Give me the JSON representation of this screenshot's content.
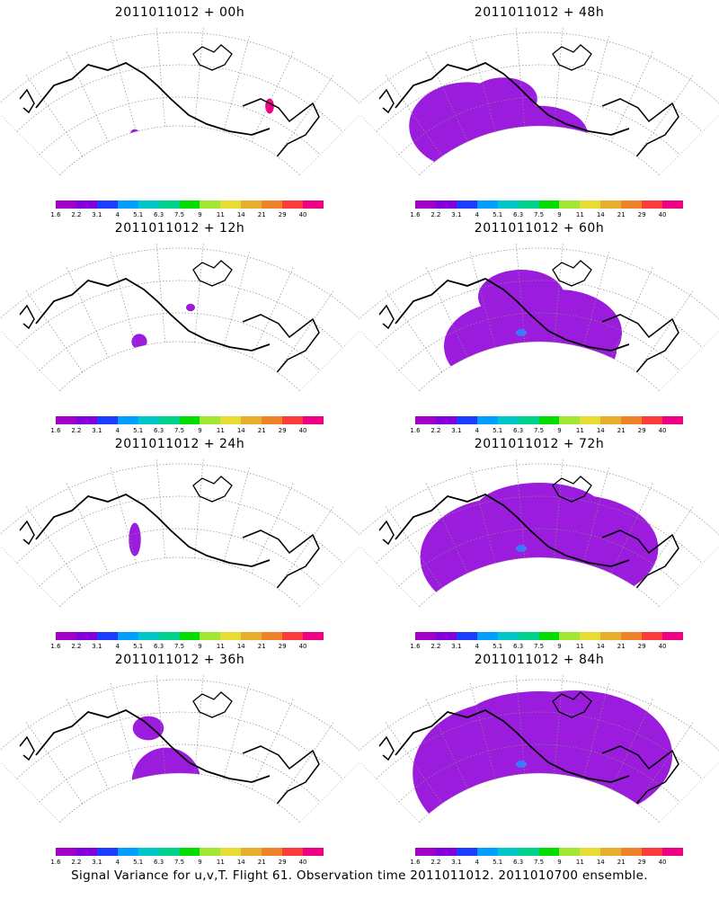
{
  "panels": [
    {
      "title": "2011011012 + 00h",
      "spread": 0
    },
    {
      "title": "2011011012 + 48h",
      "spread": 4
    },
    {
      "title": "2011011012 + 12h",
      "spread": 1
    },
    {
      "title": "2011011012 + 60h",
      "spread": 5
    },
    {
      "title": "2011011012 + 24h",
      "spread": 2
    },
    {
      "title": "2011011012 + 72h",
      "spread": 6
    },
    {
      "title": "2011011012 + 36h",
      "spread": 3
    },
    {
      "title": "2011011012 + 84h",
      "spread": 7
    }
  ],
  "colorbar": {
    "labels": [
      "1.6",
      "2.2",
      "3.1",
      "4",
      "5.1",
      "6.3",
      "7.5",
      "9",
      "11",
      "14",
      "21",
      "29",
      "40"
    ],
    "colors": [
      "#a000c8",
      "#8200dc",
      "#1e3cff",
      "#00a0ff",
      "#00c8c8",
      "#00d28c",
      "#00dc00",
      "#a0e632",
      "#e6dc32",
      "#e6af2d",
      "#f08228",
      "#fa3c3c",
      "#f00082"
    ]
  },
  "footer": "Signal Variance for u,v,T. Flight 61. Observation time 2011011012. 2011010700 ensemble."
}
